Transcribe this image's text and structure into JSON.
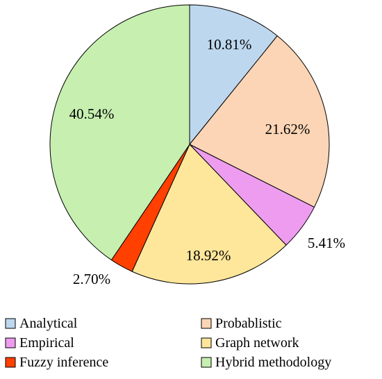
{
  "chart_data": {
    "type": "pie",
    "title": "",
    "start_angle_deg": 90,
    "direction": "clockwise",
    "legend_position": "bottom",
    "slices": [
      {
        "name": "Analytical",
        "value": 10.81,
        "label": "10.81%",
        "color": "#bdd7ee"
      },
      {
        "name": "Probablistic",
        "value": 21.62,
        "label": "21.62%",
        "color": "#fbd5b5"
      },
      {
        "name": "Empirical",
        "value": 5.41,
        "label": "5.41%",
        "color": "#ee9cf0"
      },
      {
        "name": "Graph network",
        "value": 18.92,
        "label": "18.92%",
        "color": "#fee69a"
      },
      {
        "name": "Fuzzy inference",
        "value": 2.7,
        "label": "2.70%",
        "color": "#ff4000"
      },
      {
        "name": "Hybrid methodology",
        "value": 40.54,
        "label": "40.54%",
        "color": "#c6efb0"
      }
    ]
  }
}
